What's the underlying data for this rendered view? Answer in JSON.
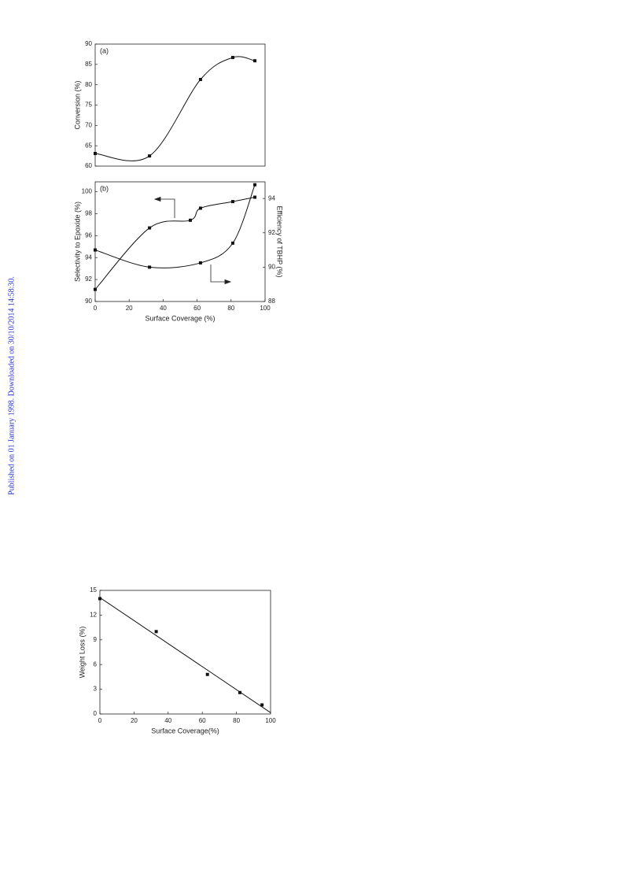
{
  "side_note": "Published on 01 January 1998. Downloaded on 30/10/2014 14:58:30.",
  "chart_data": [
    {
      "type": "scatter",
      "annotation": "(a)",
      "ylabel": "Conversion (%)",
      "x": [
        0,
        32,
        62,
        81,
        94
      ],
      "xlim": [
        0,
        100
      ],
      "ylim": [
        60,
        90
      ],
      "yticks": [
        60,
        65,
        70,
        75,
        80,
        85,
        90
      ],
      "series": [
        {
          "color": "#111111",
          "values": [
            63.1,
            62.5,
            81.3,
            86.7,
            85.9
          ]
        }
      ]
    },
    {
      "type": "scatter",
      "annotation": "(b)",
      "xlabel": "Surface Coverage (%)",
      "ylabel": "Selectivity to Epoxide (%)",
      "y2label": "Efficiency of TBHP (%)",
      "xlim": [
        0,
        100
      ],
      "xticks": [
        0,
        20,
        40,
        60,
        80,
        100
      ],
      "ylim": [
        90,
        100.9
      ],
      "yticks": [
        90,
        92,
        94,
        96,
        98,
        100
      ],
      "y2lim": [
        88,
        94.97
      ],
      "y2ticks": [
        88,
        90,
        92,
        94
      ],
      "series": [
        {
          "color": "#111111",
          "x": [
            0,
            32,
            56,
            62,
            81,
            94
          ],
          "values": [
            91.1,
            96.7,
            97.4,
            98.5,
            99.1,
            99.5
          ]
        },
        {
          "color": "#111111",
          "axis": "y2",
          "x": [
            0,
            32,
            62,
            81,
            94
          ],
          "values": [
            91.0,
            90.0,
            90.25,
            91.4,
            94.8
          ]
        }
      ]
    },
    {
      "type": "scatter",
      "xlabel": "Surface Coverage(%)",
      "ylabel": "Weight Loss (%)",
      "x": [
        0,
        33,
        63,
        82,
        95
      ],
      "xlim": [
        0,
        100
      ],
      "xticks": [
        0,
        20,
        40,
        60,
        80,
        100
      ],
      "ylim": [
        0,
        15
      ],
      "yticks": [
        0,
        3,
        6,
        9,
        12,
        15
      ],
      "series": [
        {
          "color": "#111111",
          "values": [
            14.0,
            10.0,
            4.8,
            2.6,
            1.1
          ]
        }
      ]
    }
  ]
}
